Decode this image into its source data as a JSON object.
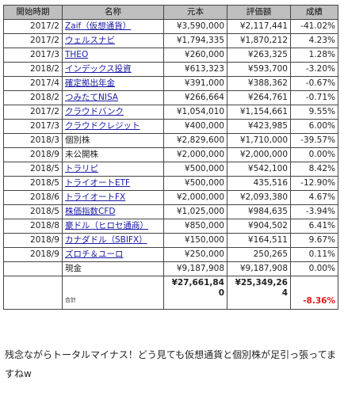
{
  "table": {
    "headers": [
      "開始時期",
      "名称",
      "元本",
      "評価額",
      "成績"
    ],
    "rows": [
      {
        "date": "2017/2",
        "name": "Zaif（仮想通貨）",
        "link": true,
        "principal": "¥3,590,000",
        "value": "¥2,117,441",
        "pct": "-41.02%"
      },
      {
        "date": "2017/2",
        "name": "ウェルスナビ",
        "link": true,
        "principal": "¥1,794,335",
        "value": "¥1,870,212",
        "pct": "4.23%"
      },
      {
        "date": "2017/3",
        "name": "THEO",
        "link": true,
        "principal": "¥260,000",
        "value": "¥263,325",
        "pct": "1.28%"
      },
      {
        "date": "2018/2",
        "name": "インデックス投資",
        "link": true,
        "principal": "¥613,323",
        "value": "¥593,700",
        "pct": "-3.20%"
      },
      {
        "date": "2017/4",
        "name": "確定拠出年金",
        "link": true,
        "principal": "¥391,000",
        "value": "¥388,362",
        "pct": "-0.67%"
      },
      {
        "date": "2018/2",
        "name": "つみたてNISA",
        "link": true,
        "principal": "¥266,664",
        "value": "¥264,761",
        "pct": "-0.71%"
      },
      {
        "date": "2017/2",
        "name": "クラウドバンク",
        "link": true,
        "principal": "¥1,054,010",
        "value": "¥1,154,661",
        "pct": "9.55%"
      },
      {
        "date": "2017/3",
        "name": "クラウドクレジット",
        "link": true,
        "principal": "¥400,000",
        "value": "¥423,985",
        "pct": "6.00%"
      },
      {
        "date": "2018/3",
        "name": "個別株",
        "link": false,
        "principal": "¥2,829,600",
        "value": "¥1,710,000",
        "pct": "-39.57%"
      },
      {
        "date": "2018/9",
        "name": "未公開株",
        "link": false,
        "principal": "¥2,000,000",
        "value": "¥2,000,000",
        "pct": "0.00%"
      },
      {
        "date": "2018/5",
        "name": "トラリピ",
        "link": true,
        "principal": "¥500,000",
        "value": "¥542,100",
        "pct": "8.42%"
      },
      {
        "date": "2018/5",
        "name": "トライオートETF",
        "link": true,
        "principal": "¥500,000",
        "value": "435,516",
        "pct": "-12.90%"
      },
      {
        "date": "2018/6",
        "name": "トライオートFX",
        "link": true,
        "principal": "¥2,000,000",
        "value": "¥2,093,380",
        "pct": "4.67%"
      },
      {
        "date": "2018/5",
        "name": "株価指数CFD",
        "link": true,
        "principal": "¥1,025,000",
        "value": "¥984,635",
        "pct": "-3.94%"
      },
      {
        "date": "2018/8",
        "name": "豪ドル（ヒロセ通商）",
        "link": true,
        "principal": "¥850,000",
        "value": "¥904,502",
        "pct": "6.41%"
      },
      {
        "date": "2018/9",
        "name": "カナダドル（SBIFX）",
        "link": true,
        "principal": "¥150,000",
        "value": "¥164,511",
        "pct": "9.67%"
      },
      {
        "date": "2018/9",
        "name": "ズロチ＆ユーロ",
        "link": true,
        "principal": "¥250,000",
        "value": "250,265",
        "pct": "0.11%"
      },
      {
        "date": "",
        "name": "現金",
        "link": false,
        "principal": "¥9,187,908",
        "value": "¥9,187,908",
        "pct": "0.00%"
      }
    ],
    "total": {
      "label": "合計",
      "principal": "¥27,661,840",
      "value": "¥25,349,264",
      "pct": "-8.36%"
    }
  },
  "comment": "残念ながらトータルマイナス！どう見ても仮想通貨と個別株が足引っ張ってますねw",
  "colors": {
    "header_bg": "#bfbfbf",
    "link": "#1a1aa6",
    "negative_total": "#e41a1a",
    "border": "#444444"
  }
}
